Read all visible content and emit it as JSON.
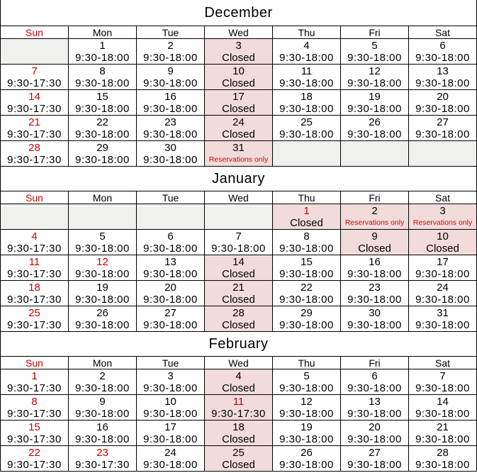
{
  "colors": {
    "red": "#cc0000",
    "note_red": "#dd0000",
    "pink": "#f2dcdb",
    "gray": "#f0f0ee",
    "border": "#000000"
  },
  "day_headers": [
    "Sun",
    "Mon",
    "Tue",
    "Wed",
    "Thu",
    "Fri",
    "Sat"
  ],
  "months": [
    {
      "title": "December",
      "weeks": [
        [
          {
            "kind": "empty",
            "bg": "gray"
          },
          {
            "d": "1",
            "t": "9:30-18:00",
            "kind": "hours",
            "bg": "white",
            "redDate": false
          },
          {
            "d": "2",
            "t": "9:30-18:00",
            "kind": "hours",
            "bg": "white",
            "redDate": false
          },
          {
            "d": "3",
            "t": "Closed",
            "kind": "closed",
            "bg": "pink",
            "redDate": false
          },
          {
            "d": "4",
            "t": "9:30-18:00",
            "kind": "hours",
            "bg": "white",
            "redDate": false
          },
          {
            "d": "5",
            "t": "9:30-18:00",
            "kind": "hours",
            "bg": "white",
            "redDate": false
          },
          {
            "d": "6",
            "t": "9:30-18:00",
            "kind": "hours",
            "bg": "white",
            "redDate": false
          }
        ],
        [
          {
            "d": "7",
            "t": "9:30-17:30",
            "kind": "hours",
            "bg": "white",
            "redDate": true
          },
          {
            "d": "8",
            "t": "9:30-18:00",
            "kind": "hours",
            "bg": "white",
            "redDate": false
          },
          {
            "d": "9",
            "t": "9:30-18:00",
            "kind": "hours",
            "bg": "white",
            "redDate": false
          },
          {
            "d": "10",
            "t": "Closed",
            "kind": "closed",
            "bg": "pink",
            "redDate": false
          },
          {
            "d": "11",
            "t": "9:30-18:00",
            "kind": "hours",
            "bg": "white",
            "redDate": false
          },
          {
            "d": "12",
            "t": "9:30-18:00",
            "kind": "hours",
            "bg": "white",
            "redDate": false
          },
          {
            "d": "13",
            "t": "9:30-18:00",
            "kind": "hours",
            "bg": "white",
            "redDate": false
          }
        ],
        [
          {
            "d": "14",
            "t": "9:30-17:30",
            "kind": "hours",
            "bg": "white",
            "redDate": true
          },
          {
            "d": "15",
            "t": "9:30-18:00",
            "kind": "hours",
            "bg": "white",
            "redDate": false
          },
          {
            "d": "16",
            "t": "9:30-18:00",
            "kind": "hours",
            "bg": "white",
            "redDate": false
          },
          {
            "d": "17",
            "t": "Closed",
            "kind": "closed",
            "bg": "pink",
            "redDate": false
          },
          {
            "d": "18",
            "t": "9:30-18:00",
            "kind": "hours",
            "bg": "white",
            "redDate": false
          },
          {
            "d": "19",
            "t": "9:30-18:00",
            "kind": "hours",
            "bg": "white",
            "redDate": false
          },
          {
            "d": "20",
            "t": "9:30-18:00",
            "kind": "hours",
            "bg": "white",
            "redDate": false
          }
        ],
        [
          {
            "d": "21",
            "t": "9:30-17:30",
            "kind": "hours",
            "bg": "white",
            "redDate": true
          },
          {
            "d": "22",
            "t": "9:30-18:00",
            "kind": "hours",
            "bg": "white",
            "redDate": false
          },
          {
            "d": "23",
            "t": "9:30-18:00",
            "kind": "hours",
            "bg": "white",
            "redDate": false
          },
          {
            "d": "24",
            "t": "Closed",
            "kind": "closed",
            "bg": "pink",
            "redDate": false
          },
          {
            "d": "25",
            "t": "9:30-18:00",
            "kind": "hours",
            "bg": "white",
            "redDate": false
          },
          {
            "d": "26",
            "t": "9:30-18:00",
            "kind": "hours",
            "bg": "white",
            "redDate": false
          },
          {
            "d": "27",
            "t": "9:30-18:00",
            "kind": "hours",
            "bg": "white",
            "redDate": false
          }
        ],
        [
          {
            "d": "28",
            "t": "9:30-17:30",
            "kind": "hours",
            "bg": "white",
            "redDate": true
          },
          {
            "d": "29",
            "t": "9:30-18:00",
            "kind": "hours",
            "bg": "white",
            "redDate": false
          },
          {
            "d": "30",
            "t": "9:30-18:00",
            "kind": "hours",
            "bg": "white",
            "redDate": false
          },
          {
            "d": "31",
            "t": "Reservations only",
            "kind": "note",
            "bg": "pink",
            "redDate": false
          },
          {
            "kind": "empty",
            "bg": "gray"
          },
          {
            "kind": "empty",
            "bg": "gray"
          },
          {
            "kind": "empty",
            "bg": "gray"
          }
        ]
      ]
    },
    {
      "title": "January",
      "weeks": [
        [
          {
            "kind": "empty",
            "bg": "gray"
          },
          {
            "kind": "empty",
            "bg": "gray"
          },
          {
            "kind": "empty",
            "bg": "gray"
          },
          {
            "kind": "empty",
            "bg": "gray"
          },
          {
            "d": "1",
            "t": "Closed",
            "kind": "closed",
            "bg": "pink",
            "redDate": true
          },
          {
            "d": "2",
            "t": "Reservations only",
            "kind": "note",
            "bg": "pink",
            "redDate": false
          },
          {
            "d": "3",
            "t": "Reservations only",
            "kind": "note",
            "bg": "pink",
            "redDate": false
          }
        ],
        [
          {
            "d": "4",
            "t": "9:30-17:30",
            "kind": "hours",
            "bg": "white",
            "redDate": true
          },
          {
            "d": "5",
            "t": "9:30-18:00",
            "kind": "hours",
            "bg": "white",
            "redDate": false
          },
          {
            "d": "6",
            "t": "9:30-18:00",
            "kind": "hours",
            "bg": "white",
            "redDate": false
          },
          {
            "d": "7",
            "t": "9:30-18:00",
            "kind": "hours",
            "bg": "white",
            "redDate": false
          },
          {
            "d": "8",
            "t": "9:30-18:00",
            "kind": "hours",
            "bg": "white",
            "redDate": false
          },
          {
            "d": "9",
            "t": "Closed",
            "kind": "closed",
            "bg": "pink",
            "redDate": false
          },
          {
            "d": "10",
            "t": "Closed",
            "kind": "closed",
            "bg": "pink",
            "redDate": false
          }
        ],
        [
          {
            "d": "11",
            "t": "9:30-17:30",
            "kind": "hours",
            "bg": "white",
            "redDate": true
          },
          {
            "d": "12",
            "t": "9:30-18:00",
            "kind": "hours",
            "bg": "white",
            "redDate": true
          },
          {
            "d": "13",
            "t": "9:30-18:00",
            "kind": "hours",
            "bg": "white",
            "redDate": false
          },
          {
            "d": "14",
            "t": "Closed",
            "kind": "closed",
            "bg": "pink",
            "redDate": false
          },
          {
            "d": "15",
            "t": "9:30-18:00",
            "kind": "hours",
            "bg": "white",
            "redDate": false
          },
          {
            "d": "16",
            "t": "9:30-18:00",
            "kind": "hours",
            "bg": "white",
            "redDate": false
          },
          {
            "d": "17",
            "t": "9:30-18:00",
            "kind": "hours",
            "bg": "white",
            "redDate": false
          }
        ],
        [
          {
            "d": "18",
            "t": "9:30-17:30",
            "kind": "hours",
            "bg": "white",
            "redDate": true
          },
          {
            "d": "19",
            "t": "9:30-18:00",
            "kind": "hours",
            "bg": "white",
            "redDate": false
          },
          {
            "d": "20",
            "t": "9:30-18:00",
            "kind": "hours",
            "bg": "white",
            "redDate": false
          },
          {
            "d": "21",
            "t": "Closed",
            "kind": "closed",
            "bg": "pink",
            "redDate": false
          },
          {
            "d": "22",
            "t": "9:30-18:00",
            "kind": "hours",
            "bg": "white",
            "redDate": false
          },
          {
            "d": "23",
            "t": "9:30-18:00",
            "kind": "hours",
            "bg": "white",
            "redDate": false
          },
          {
            "d": "24",
            "t": "9:30-18:00",
            "kind": "hours",
            "bg": "white",
            "redDate": false
          }
        ],
        [
          {
            "d": "25",
            "t": "9:30-17:30",
            "kind": "hours",
            "bg": "white",
            "redDate": true
          },
          {
            "d": "26",
            "t": "9:30-18:00",
            "kind": "hours",
            "bg": "white",
            "redDate": false
          },
          {
            "d": "27",
            "t": "9:30-18:00",
            "kind": "hours",
            "bg": "white",
            "redDate": false
          },
          {
            "d": "28",
            "t": "Closed",
            "kind": "closed",
            "bg": "pink",
            "redDate": false
          },
          {
            "d": "29",
            "t": "9:30-18:00",
            "kind": "hours",
            "bg": "white",
            "redDate": false
          },
          {
            "d": "30",
            "t": "9:30-18:00",
            "kind": "hours",
            "bg": "white",
            "redDate": false
          },
          {
            "d": "31",
            "t": "9:30-18:00",
            "kind": "hours",
            "bg": "white",
            "redDate": false
          }
        ]
      ]
    },
    {
      "title": "February",
      "weeks": [
        [
          {
            "d": "1",
            "t": "9:30-17:30",
            "kind": "hours",
            "bg": "white",
            "redDate": true
          },
          {
            "d": "2",
            "t": "9:30-18:00",
            "kind": "hours",
            "bg": "white",
            "redDate": false
          },
          {
            "d": "3",
            "t": "9:30-18:00",
            "kind": "hours",
            "bg": "white",
            "redDate": false
          },
          {
            "d": "4",
            "t": "Closed",
            "kind": "closed",
            "bg": "pink",
            "redDate": false
          },
          {
            "d": "5",
            "t": "9:30-18:00",
            "kind": "hours",
            "bg": "white",
            "redDate": false
          },
          {
            "d": "6",
            "t": "9:30-18:00",
            "kind": "hours",
            "bg": "white",
            "redDate": false
          },
          {
            "d": "7",
            "t": "9:30-18:00",
            "kind": "hours",
            "bg": "white",
            "redDate": false
          }
        ],
        [
          {
            "d": "8",
            "t": "9:30-17:30",
            "kind": "hours",
            "bg": "white",
            "redDate": true
          },
          {
            "d": "9",
            "t": "9:30-18:00",
            "kind": "hours",
            "bg": "white",
            "redDate": false
          },
          {
            "d": "10",
            "t": "9:30-18:00",
            "kind": "hours",
            "bg": "white",
            "redDate": false
          },
          {
            "d": "11",
            "t": "9:30-17:30",
            "kind": "hours",
            "bg": "pink",
            "redDate": true
          },
          {
            "d": "12",
            "t": "9:30-18:00",
            "kind": "hours",
            "bg": "white",
            "redDate": false
          },
          {
            "d": "13",
            "t": "9:30-18:00",
            "kind": "hours",
            "bg": "white",
            "redDate": false
          },
          {
            "d": "14",
            "t": "9:30-18:00",
            "kind": "hours",
            "bg": "white",
            "redDate": false
          }
        ],
        [
          {
            "d": "15",
            "t": "9:30-17:30",
            "kind": "hours",
            "bg": "white",
            "redDate": true
          },
          {
            "d": "16",
            "t": "9:30-18:00",
            "kind": "hours",
            "bg": "white",
            "redDate": false
          },
          {
            "d": "17",
            "t": "9:30-18:00",
            "kind": "hours",
            "bg": "white",
            "redDate": false
          },
          {
            "d": "18",
            "t": "Closed",
            "kind": "closed",
            "bg": "pink",
            "redDate": false
          },
          {
            "d": "19",
            "t": "9:30-18:00",
            "kind": "hours",
            "bg": "white",
            "redDate": false
          },
          {
            "d": "20",
            "t": "9:30-18:00",
            "kind": "hours",
            "bg": "white",
            "redDate": false
          },
          {
            "d": "21",
            "t": "9:30-18:00",
            "kind": "hours",
            "bg": "white",
            "redDate": false
          }
        ],
        [
          {
            "d": "22",
            "t": "9:30-17:30",
            "kind": "hours",
            "bg": "white",
            "redDate": true
          },
          {
            "d": "23",
            "t": "9:30-17:30",
            "kind": "hours",
            "bg": "white",
            "redDate": true
          },
          {
            "d": "24",
            "t": "9:30-18:00",
            "kind": "hours",
            "bg": "white",
            "redDate": false
          },
          {
            "d": "25",
            "t": "Closed",
            "kind": "closed",
            "bg": "pink",
            "redDate": false
          },
          {
            "d": "26",
            "t": "9:30-18:00",
            "kind": "hours",
            "bg": "white",
            "redDate": false
          },
          {
            "d": "27",
            "t": "9:30-18:00",
            "kind": "hours",
            "bg": "white",
            "redDate": false
          },
          {
            "d": "28",
            "t": "9:30-18:00",
            "kind": "hours",
            "bg": "white",
            "redDate": false
          }
        ]
      ]
    }
  ]
}
